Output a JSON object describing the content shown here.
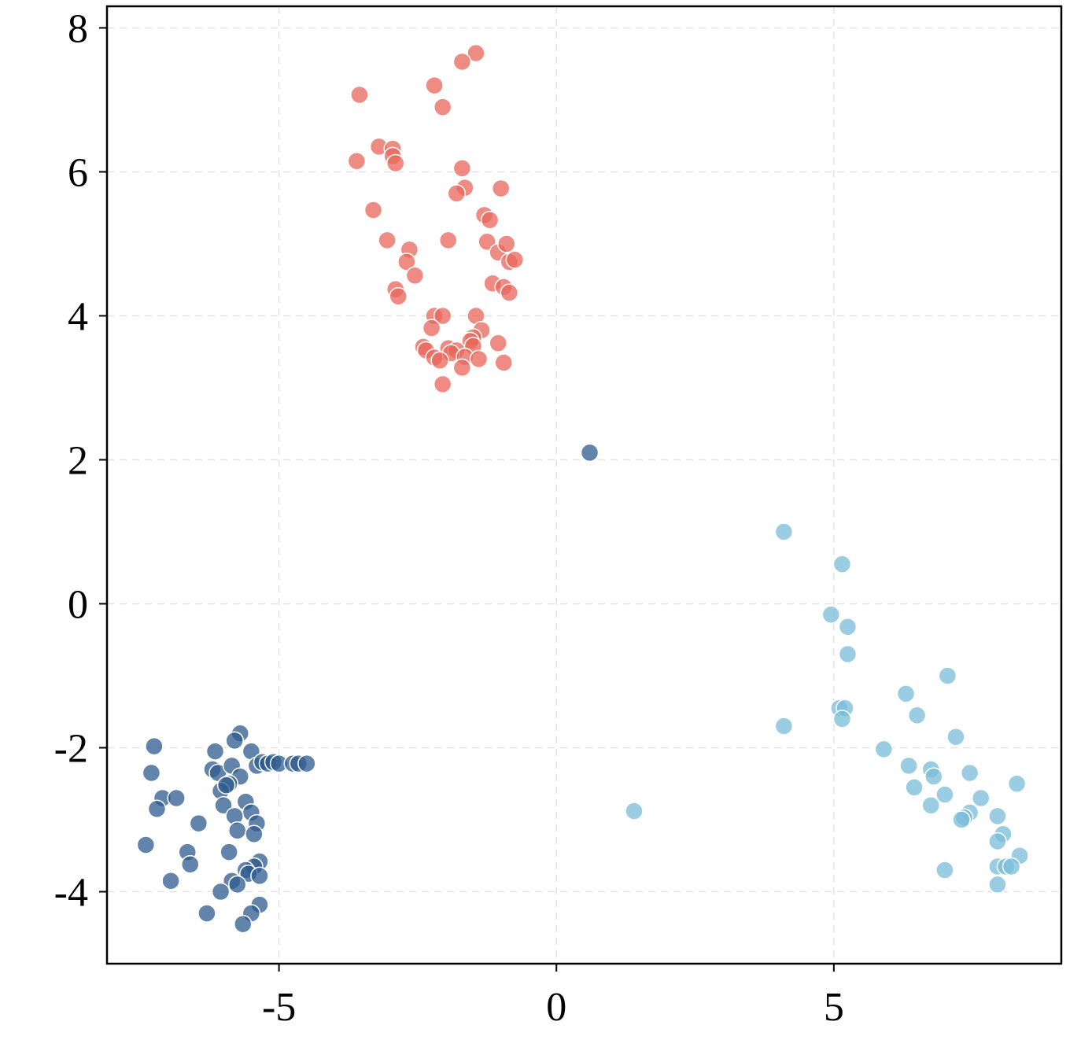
{
  "chart_data": {
    "type": "scatter",
    "title": "",
    "xlabel": "",
    "ylabel": "",
    "xlim": [
      -8.1,
      9.1
    ],
    "ylim": [
      -5.0,
      8.3
    ],
    "xticks": [
      -5,
      0,
      5
    ],
    "xtick_labels": [
      "-5",
      "0",
      "5"
    ],
    "yticks": [
      -4,
      -2,
      0,
      2,
      4,
      6,
      8
    ],
    "ytick_labels": [
      "-4",
      "-2",
      "0",
      "2",
      "4",
      "6",
      "8"
    ],
    "grid": true,
    "legend": "none",
    "series": [
      {
        "color": "#e8655a",
        "opacity": 0.75,
        "points": [
          [
            -1.45,
            7.65
          ],
          [
            -1.7,
            7.53
          ],
          [
            -2.2,
            7.2
          ],
          [
            -3.55,
            7.07
          ],
          [
            -2.05,
            6.9
          ],
          [
            -3.2,
            6.35
          ],
          [
            -2.95,
            6.32
          ],
          [
            -2.95,
            6.22
          ],
          [
            -2.9,
            6.12
          ],
          [
            -3.6,
            6.15
          ],
          [
            -1.7,
            6.05
          ],
          [
            -1.65,
            5.78
          ],
          [
            -1.8,
            5.7
          ],
          [
            -1.0,
            5.77
          ],
          [
            -3.3,
            5.47
          ],
          [
            -1.3,
            5.4
          ],
          [
            -1.2,
            5.33
          ],
          [
            -3.05,
            5.05
          ],
          [
            -1.95,
            5.05
          ],
          [
            -1.25,
            5.03
          ],
          [
            -1.05,
            4.88
          ],
          [
            -0.9,
            5.0
          ],
          [
            -0.85,
            4.75
          ],
          [
            -0.75,
            4.78
          ],
          [
            -2.65,
            4.92
          ],
          [
            -2.7,
            4.75
          ],
          [
            -2.55,
            4.56
          ],
          [
            -2.9,
            4.37
          ],
          [
            -2.85,
            4.27
          ],
          [
            -1.15,
            4.45
          ],
          [
            -0.95,
            4.4
          ],
          [
            -0.85,
            4.32
          ],
          [
            -2.2,
            4.0
          ],
          [
            -2.05,
            4.0
          ],
          [
            -1.45,
            4.0
          ],
          [
            -2.25,
            3.83
          ],
          [
            -1.35,
            3.8
          ],
          [
            -1.5,
            3.7
          ],
          [
            -1.55,
            3.65
          ],
          [
            -1.5,
            3.58
          ],
          [
            -2.4,
            3.57
          ],
          [
            -2.35,
            3.52
          ],
          [
            -1.95,
            3.55
          ],
          [
            -1.8,
            3.52
          ],
          [
            -1.9,
            3.48
          ],
          [
            -1.65,
            3.43
          ],
          [
            -2.2,
            3.42
          ],
          [
            -2.1,
            3.38
          ],
          [
            -1.4,
            3.4
          ],
          [
            -1.05,
            3.62
          ],
          [
            -0.95,
            3.35
          ],
          [
            -1.7,
            3.28
          ],
          [
            -2.05,
            3.05
          ]
        ]
      },
      {
        "color": "#2e5b8e",
        "opacity": 0.75,
        "points": [
          [
            0.6,
            2.1
          ],
          [
            -5.7,
            -1.8
          ],
          [
            -5.8,
            -1.9
          ],
          [
            -5.5,
            -2.05
          ],
          [
            -6.15,
            -2.05
          ],
          [
            -7.25,
            -1.98
          ],
          [
            -5.4,
            -2.25
          ],
          [
            -5.3,
            -2.2
          ],
          [
            -5.2,
            -2.22
          ],
          [
            -5.1,
            -2.2
          ],
          [
            -5.0,
            -2.22
          ],
          [
            -4.75,
            -2.22
          ],
          [
            -4.65,
            -2.22
          ],
          [
            -4.5,
            -2.22
          ],
          [
            -6.2,
            -2.3
          ],
          [
            -6.1,
            -2.35
          ],
          [
            -5.85,
            -2.25
          ],
          [
            -5.7,
            -2.4
          ],
          [
            -5.9,
            -2.5
          ],
          [
            -6.05,
            -2.6
          ],
          [
            -5.95,
            -2.52
          ],
          [
            -7.3,
            -2.35
          ],
          [
            -7.1,
            -2.7
          ],
          [
            -6.85,
            -2.7
          ],
          [
            -5.6,
            -2.75
          ],
          [
            -6.0,
            -2.8
          ],
          [
            -7.2,
            -2.85
          ],
          [
            -5.5,
            -2.9
          ],
          [
            -5.8,
            -2.95
          ],
          [
            -5.4,
            -3.05
          ],
          [
            -6.45,
            -3.05
          ],
          [
            -5.75,
            -3.15
          ],
          [
            -5.45,
            -3.2
          ],
          [
            -7.4,
            -3.35
          ],
          [
            -5.9,
            -3.45
          ],
          [
            -6.65,
            -3.45
          ],
          [
            -6.6,
            -3.62
          ],
          [
            -5.35,
            -3.58
          ],
          [
            -5.45,
            -3.65
          ],
          [
            -5.6,
            -3.7
          ],
          [
            -5.55,
            -3.75
          ],
          [
            -5.35,
            -3.78
          ],
          [
            -5.85,
            -3.85
          ],
          [
            -5.75,
            -3.9
          ],
          [
            -6.95,
            -3.85
          ],
          [
            -6.05,
            -4.0
          ],
          [
            -5.35,
            -4.18
          ],
          [
            -6.3,
            -4.3
          ],
          [
            -5.5,
            -4.3
          ],
          [
            -5.65,
            -4.45
          ]
        ]
      },
      {
        "color": "#78bcd8",
        "opacity": 0.75,
        "points": [
          [
            4.1,
            1.0
          ],
          [
            5.15,
            0.55
          ],
          [
            4.95,
            -0.15
          ],
          [
            5.25,
            -0.32
          ],
          [
            5.25,
            -0.7
          ],
          [
            7.05,
            -1.0
          ],
          [
            6.3,
            -1.25
          ],
          [
            5.1,
            -1.45
          ],
          [
            5.2,
            -1.45
          ],
          [
            5.15,
            -1.6
          ],
          [
            6.5,
            -1.55
          ],
          [
            4.1,
            -1.7
          ],
          [
            7.2,
            -1.85
          ],
          [
            5.9,
            -2.02
          ],
          [
            6.35,
            -2.25
          ],
          [
            6.75,
            -2.3
          ],
          [
            6.8,
            -2.4
          ],
          [
            7.45,
            -2.35
          ],
          [
            6.45,
            -2.55
          ],
          [
            8.3,
            -2.5
          ],
          [
            7.0,
            -2.65
          ],
          [
            7.65,
            -2.7
          ],
          [
            6.75,
            -2.8
          ],
          [
            7.45,
            -2.9
          ],
          [
            7.35,
            -2.97
          ],
          [
            7.3,
            -3.0
          ],
          [
            7.95,
            -2.95
          ],
          [
            1.4,
            -2.88
          ],
          [
            8.05,
            -3.2
          ],
          [
            7.95,
            -3.3
          ],
          [
            8.35,
            -3.5
          ],
          [
            7.95,
            -3.65
          ],
          [
            8.1,
            -3.65
          ],
          [
            8.2,
            -3.65
          ],
          [
            7.0,
            -3.7
          ],
          [
            7.95,
            -3.9
          ]
        ]
      }
    ]
  }
}
